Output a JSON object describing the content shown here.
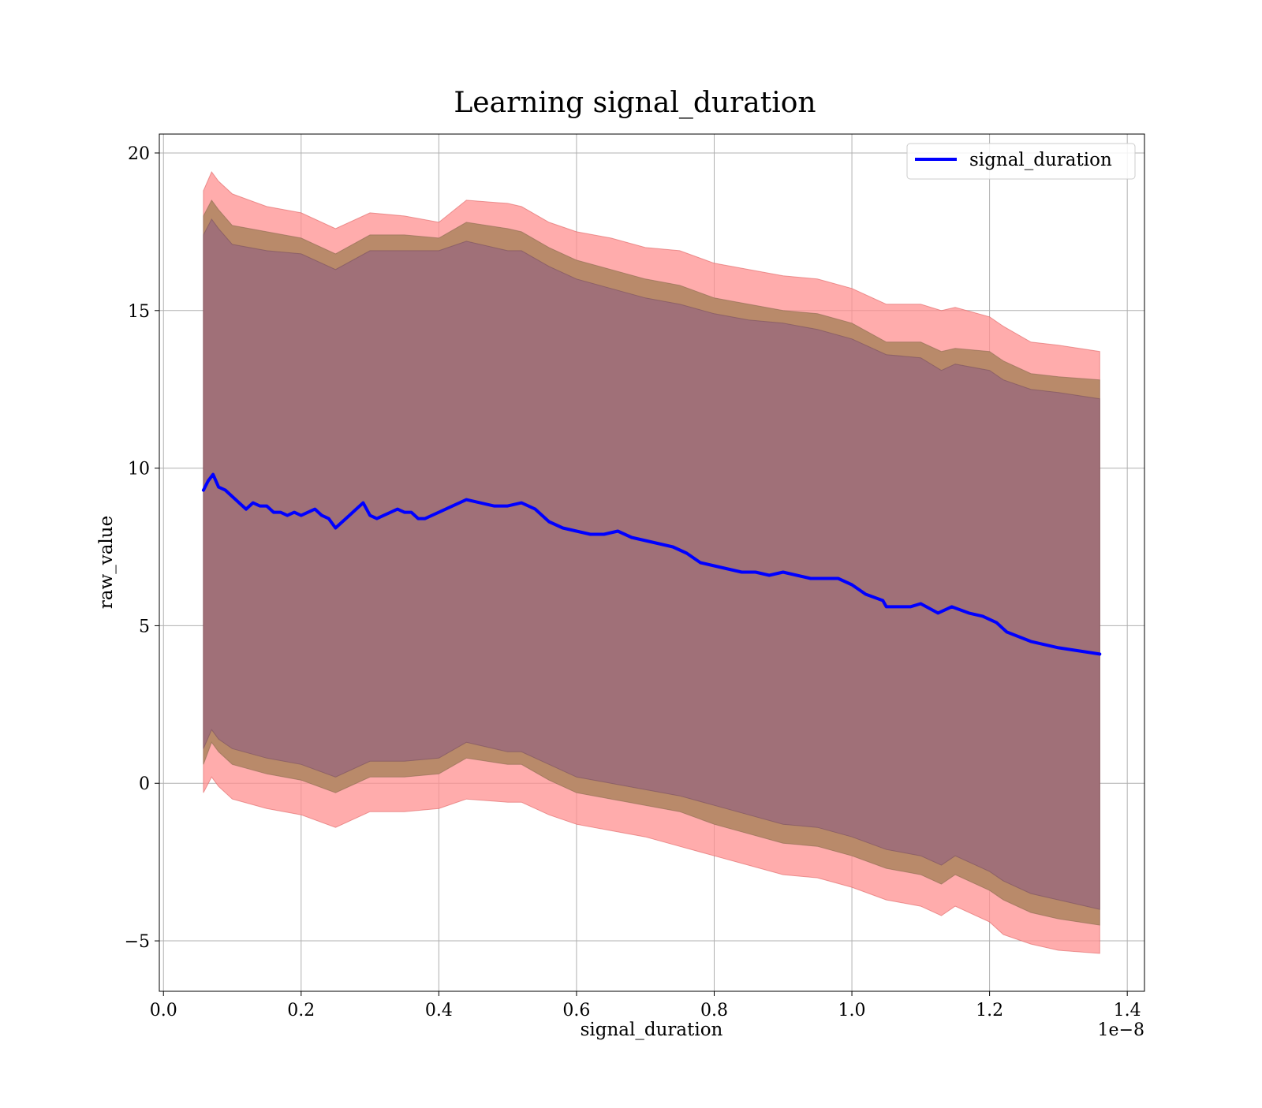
{
  "chart_data": {
    "type": "line",
    "title": "Learning signal_duration",
    "xlabel": "signal_duration",
    "ylabel": "raw_value",
    "x_offset_label": "1e−8",
    "xlim": [
      -0.006,
      1.425
    ],
    "ylim": [
      -6.6,
      20.6
    ],
    "x_ticks": [
      0.0,
      0.2,
      0.4,
      0.6,
      0.8,
      1.0,
      1.2,
      1.4
    ],
    "x_tick_labels": [
      "0.0",
      "0.2",
      "0.4",
      "0.6",
      "0.8",
      "1.0",
      "1.2",
      "1.4"
    ],
    "y_ticks": [
      -5,
      0,
      5,
      10,
      15,
      20
    ],
    "y_tick_labels": [
      "−5",
      "0",
      "5",
      "10",
      "15",
      "20"
    ],
    "grid": true,
    "legend_position": "top-right",
    "colors": {
      "line": "#0000ff",
      "band_outer": "#ff9090",
      "band_middle": "#b98a6a",
      "band_inner": "#a07078"
    },
    "series": [
      {
        "name": "signal_duration",
        "x": [
          0.058,
          0.065,
          0.072,
          0.08,
          0.09,
          0.1,
          0.11,
          0.12,
          0.13,
          0.14,
          0.15,
          0.16,
          0.17,
          0.18,
          0.19,
          0.2,
          0.21,
          0.22,
          0.23,
          0.24,
          0.25,
          0.26,
          0.27,
          0.28,
          0.29,
          0.3,
          0.31,
          0.32,
          0.33,
          0.34,
          0.35,
          0.36,
          0.37,
          0.38,
          0.39,
          0.4,
          0.42,
          0.44,
          0.46,
          0.48,
          0.5,
          0.52,
          0.54,
          0.56,
          0.58,
          0.6,
          0.62,
          0.64,
          0.66,
          0.68,
          0.7,
          0.72,
          0.74,
          0.76,
          0.78,
          0.8,
          0.82,
          0.84,
          0.86,
          0.88,
          0.9,
          0.92,
          0.94,
          0.96,
          0.98,
          1.0,
          1.02,
          1.045,
          1.05,
          1.07,
          1.085,
          1.1,
          1.125,
          1.145,
          1.17,
          1.19,
          1.21,
          1.225,
          1.26,
          1.3,
          1.33,
          1.36
        ],
        "values": [
          9.3,
          9.6,
          9.8,
          9.4,
          9.3,
          9.1,
          8.9,
          8.7,
          8.9,
          8.8,
          8.8,
          8.6,
          8.6,
          8.5,
          8.6,
          8.5,
          8.6,
          8.7,
          8.5,
          8.4,
          8.1,
          8.3,
          8.5,
          8.7,
          8.9,
          8.5,
          8.4,
          8.5,
          8.6,
          8.7,
          8.6,
          8.6,
          8.4,
          8.4,
          8.5,
          8.6,
          8.8,
          9.0,
          8.9,
          8.8,
          8.8,
          8.9,
          8.7,
          8.3,
          8.1,
          8.0,
          7.9,
          7.9,
          8.0,
          7.8,
          7.7,
          7.6,
          7.5,
          7.3,
          7.0,
          6.9,
          6.8,
          6.7,
          6.7,
          6.6,
          6.7,
          6.6,
          6.5,
          6.5,
          6.5,
          6.3,
          6.0,
          5.8,
          5.6,
          5.6,
          5.6,
          5.7,
          5.4,
          5.6,
          5.4,
          5.3,
          5.1,
          4.8,
          4.5,
          4.3,
          4.2,
          4.1
        ]
      }
    ],
    "bands": [
      {
        "label": "outer",
        "x": [
          0.058,
          0.07,
          0.08,
          0.1,
          0.15,
          0.2,
          0.25,
          0.3,
          0.35,
          0.4,
          0.44,
          0.5,
          0.52,
          0.56,
          0.6,
          0.65,
          0.7,
          0.75,
          0.8,
          0.85,
          0.9,
          0.95,
          1.0,
          1.05,
          1.1,
          1.13,
          1.15,
          1.2,
          1.22,
          1.26,
          1.3,
          1.36
        ],
        "upper": [
          18.8,
          19.4,
          19.1,
          18.7,
          18.3,
          18.1,
          17.6,
          18.1,
          18.0,
          17.8,
          18.5,
          18.4,
          18.3,
          17.8,
          17.5,
          17.3,
          17.0,
          16.9,
          16.5,
          16.3,
          16.1,
          16.0,
          15.7,
          15.2,
          15.2,
          15.0,
          15.1,
          14.8,
          14.5,
          14.0,
          13.9,
          13.7
        ],
        "lower": [
          -0.3,
          0.2,
          -0.1,
          -0.5,
          -0.8,
          -1.0,
          -1.4,
          -0.9,
          -0.9,
          -0.8,
          -0.5,
          -0.6,
          -0.6,
          -1.0,
          -1.3,
          -1.5,
          -1.7,
          -2.0,
          -2.3,
          -2.6,
          -2.9,
          -3.0,
          -3.3,
          -3.7,
          -3.9,
          -4.2,
          -3.9,
          -4.4,
          -4.8,
          -5.1,
          -5.3,
          -5.4
        ]
      },
      {
        "label": "middle",
        "x": [
          0.058,
          0.07,
          0.08,
          0.1,
          0.15,
          0.2,
          0.25,
          0.3,
          0.35,
          0.4,
          0.44,
          0.5,
          0.52,
          0.56,
          0.6,
          0.65,
          0.7,
          0.75,
          0.8,
          0.85,
          0.9,
          0.95,
          1.0,
          1.05,
          1.1,
          1.13,
          1.15,
          1.2,
          1.22,
          1.26,
          1.3,
          1.36
        ],
        "upper": [
          18.0,
          18.5,
          18.2,
          17.7,
          17.5,
          17.3,
          16.8,
          17.4,
          17.4,
          17.3,
          17.8,
          17.6,
          17.5,
          17.0,
          16.6,
          16.3,
          16.0,
          15.8,
          15.4,
          15.2,
          15.0,
          14.9,
          14.6,
          14.0,
          14.0,
          13.7,
          13.8,
          13.7,
          13.4,
          13.0,
          12.9,
          12.8
        ],
        "lower": [
          0.6,
          1.3,
          1.0,
          0.6,
          0.3,
          0.1,
          -0.3,
          0.2,
          0.2,
          0.3,
          0.8,
          0.6,
          0.6,
          0.1,
          -0.3,
          -0.5,
          -0.7,
          -0.9,
          -1.3,
          -1.6,
          -1.9,
          -2.0,
          -2.3,
          -2.7,
          -2.9,
          -3.2,
          -2.9,
          -3.4,
          -3.7,
          -4.1,
          -4.3,
          -4.5
        ]
      },
      {
        "label": "inner",
        "x": [
          0.058,
          0.07,
          0.08,
          0.1,
          0.15,
          0.2,
          0.25,
          0.3,
          0.35,
          0.4,
          0.44,
          0.5,
          0.52,
          0.56,
          0.6,
          0.65,
          0.7,
          0.75,
          0.8,
          0.85,
          0.9,
          0.95,
          1.0,
          1.05,
          1.1,
          1.13,
          1.15,
          1.2,
          1.22,
          1.26,
          1.3,
          1.36
        ],
        "upper": [
          17.4,
          17.9,
          17.6,
          17.1,
          16.9,
          16.8,
          16.3,
          16.9,
          16.9,
          16.9,
          17.2,
          16.9,
          16.9,
          16.4,
          16.0,
          15.7,
          15.4,
          15.2,
          14.9,
          14.7,
          14.6,
          14.4,
          14.1,
          13.6,
          13.5,
          13.1,
          13.3,
          13.1,
          12.8,
          12.5,
          12.4,
          12.2
        ],
        "lower": [
          1.1,
          1.7,
          1.4,
          1.1,
          0.8,
          0.6,
          0.2,
          0.7,
          0.7,
          0.8,
          1.3,
          1.0,
          1.0,
          0.6,
          0.2,
          0.0,
          -0.2,
          -0.4,
          -0.7,
          -1.0,
          -1.3,
          -1.4,
          -1.7,
          -2.1,
          -2.3,
          -2.6,
          -2.3,
          -2.8,
          -3.1,
          -3.5,
          -3.7,
          -4.0
        ]
      }
    ]
  }
}
